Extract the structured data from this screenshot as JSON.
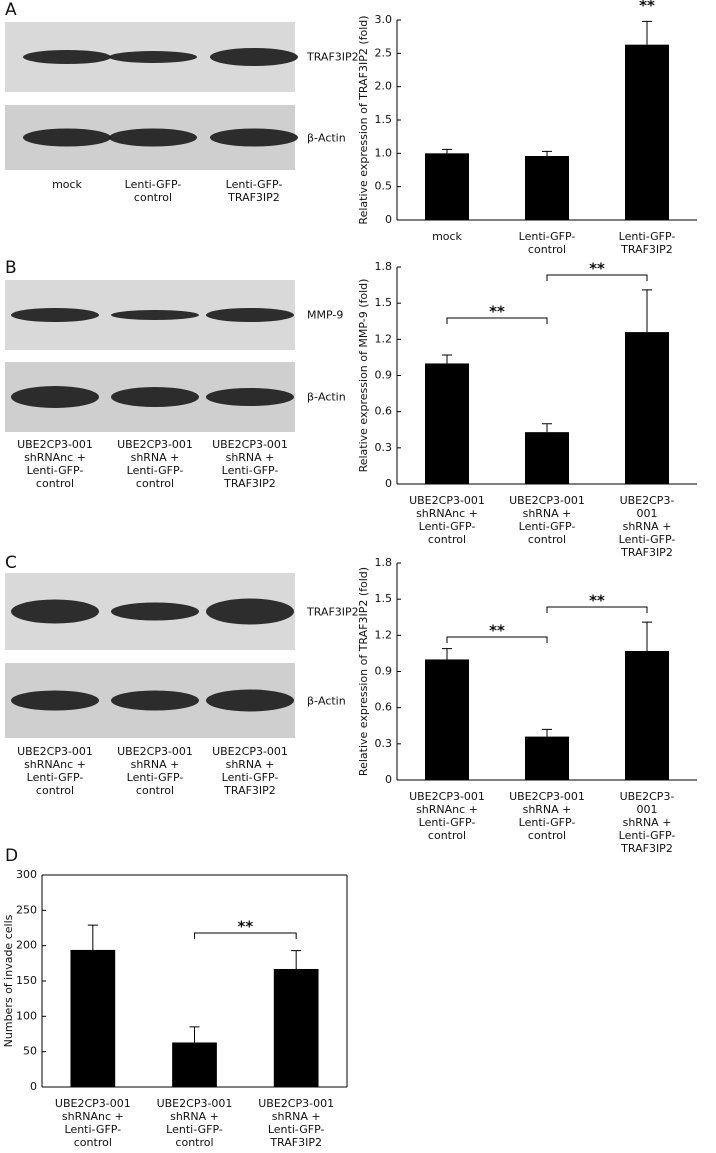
{
  "panel_labels": [
    "A",
    "B",
    "C",
    "D"
  ],
  "blots": [
    {
      "bands": [
        "TRAF3IP2",
        "β-Actin"
      ],
      "lanes": [
        "mock",
        "Lenti-GFP-\ncontrol",
        "Lenti-GFP-\nTRAF3IP2"
      ]
    },
    {
      "bands": [
        "MMP-9",
        "β-Actin"
      ],
      "lanes": [
        "UBE2CP3-001\nshRNAnc +\nLenti-GFP-\ncontrol",
        "UBE2CP3-001\nshRNA +\nLenti-GFP-\ncontrol",
        "UBE2CP3-001\nshRNA +\nLenti-GFP-\nTRAF3IP2"
      ]
    },
    {
      "bands": [
        "TRAF3IP2",
        "β-Actin"
      ],
      "lanes": [
        "UBE2CP3-001\nshRNAnc +\nLenti-GFP-\ncontrol",
        "UBE2CP3-001\nshRNA +\nLenti-GFP-\ncontrol",
        "UBE2CP3-001\nshRNA +\nLenti-GFP-\nTRAF3IP2"
      ]
    }
  ],
  "chart_data": [
    {
      "type": "bar",
      "ylabel": "Relative expression of TRAF3IP2 (fold)",
      "categories": [
        "mock",
        "Lenti-GFP-\ncontrol",
        "Lenti-GFP-\nTRAF3IP2"
      ],
      "values": [
        1.0,
        0.96,
        2.63
      ],
      "errors": [
        0.06,
        0.07,
        0.35
      ],
      "color": "#000000",
      "ylim": [
        0,
        3
      ],
      "yticks": [
        0,
        0.5,
        {
          "value": 1,
          "label": "1.0"
        },
        1.5,
        {
          "value": 2,
          "label": "2.0"
        },
        2.5,
        {
          "value": 3,
          "label": "3.0"
        }
      ],
      "annotations": [
        "**"
      ]
    },
    {
      "type": "bar",
      "ylabel": "Relative expression of MMP-9 (fold)",
      "categories": [
        "UBE2CP3-001\nshRNAnc +\nLenti-GFP-\ncontrol",
        "UBE2CP3-001\nshRNA +\nLenti-GFP-\ncontrol",
        "UBE2CP3-001\nshRNA +\nLenti-GFP-\nTRAF3IP2"
      ],
      "values": [
        1.0,
        0.43,
        1.26
      ],
      "errors": [
        0.07,
        0.07,
        0.35
      ],
      "color": "#000000",
      "ylim": [
        0,
        1.8
      ],
      "yticks": [
        0,
        0.3,
        0.6,
        0.9,
        1.2,
        1.5,
        1.8
      ],
      "annotations": [
        "**",
        "**"
      ]
    },
    {
      "type": "bar",
      "ylabel": "Relative expression of TRAF3IP2 (fold)",
      "categories": [
        "UBE2CP3-001\nshRNAnc +\nLenti-GFP-\ncontrol",
        "UBE2CP3-001\nshRNA +\nLenti-GFP-\ncontrol",
        "UBE2CP3-001\nshRNA +\nLenti-GFP-\nTRAF3IP2"
      ],
      "values": [
        1.0,
        0.36,
        1.07
      ],
      "errors": [
        0.09,
        0.06,
        0.24
      ],
      "color": "#000000",
      "ylim": [
        0,
        1.8
      ],
      "yticks": [
        0,
        0.3,
        0.6,
        0.9,
        1.2,
        1.5,
        1.8
      ],
      "annotations": [
        "**",
        "**"
      ]
    },
    {
      "type": "bar",
      "ylabel": "Numbers of invade cells",
      "categories": [
        "UBE2CP3-001\nshRNAnc +\nLenti-GFP-\ncontrol",
        "UBE2CP3-001\nshRNA +\nLenti-GFP-\ncontrol",
        "UBE2CP3-001\nshRNA +\nLenti-GFP-\nTRAF3IP2"
      ],
      "values": [
        194,
        63,
        167
      ],
      "errors": [
        35,
        22,
        26
      ],
      "color": "#000000",
      "ylim": [
        0,
        300
      ],
      "yticks": [
        0,
        50,
        100,
        150,
        200,
        250,
        300
      ],
      "annotations": [
        "**"
      ]
    }
  ]
}
